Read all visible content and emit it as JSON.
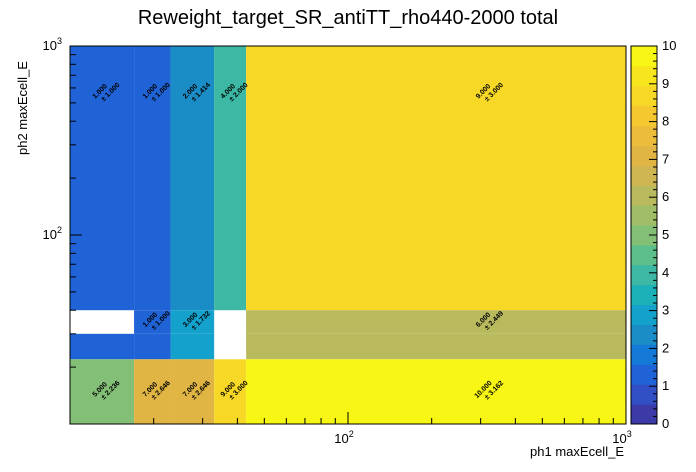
{
  "chart_data": {
    "type": "heatmap",
    "title": "Reweight_target_SR_antiTT_rho440-2000 total",
    "xlabel": "ph1 maxEcell_E",
    "ylabel": "ph2 maxEcell_E",
    "x_scale": "log",
    "y_scale": "log",
    "xlim": [
      10,
      1000
    ],
    "ylim": [
      10,
      1000
    ],
    "x_ticks": [
      {
        "value": 100,
        "mantissa": "10",
        "exponent": "2"
      },
      {
        "value": 1000,
        "mantissa": "10",
        "exponent": "3"
      }
    ],
    "y_ticks": [
      {
        "value": 100,
        "mantissa": "10",
        "exponent": "2"
      },
      {
        "value": 1000,
        "mantissa": "10",
        "exponent": "3"
      }
    ],
    "x_edges": [
      10,
      17,
      23,
      33,
      43,
      1000
    ],
    "y_edges": [
      10,
      22,
      30,
      40,
      1000
    ],
    "cells": [
      {
        "i": 0,
        "j": 3,
        "value": 1,
        "label": "1.000",
        "error": "± 1.000"
      },
      {
        "i": 1,
        "j": 3,
        "value": 1,
        "label": "1.000",
        "error": "± 1.000"
      },
      {
        "i": 2,
        "j": 3,
        "value": 2,
        "label": "2.000",
        "error": "± 1.414"
      },
      {
        "i": 3,
        "j": 3,
        "value": 4,
        "label": "4.000",
        "error": "± 2.000"
      },
      {
        "i": 4,
        "j": 3,
        "value": 9,
        "label": "9.000",
        "error": "± 3.000"
      },
      {
        "i": 1,
        "j": 2,
        "value": 1,
        "label": "1.000",
        "error": "± 1.000"
      },
      {
        "i": 2,
        "j": 2,
        "value": 3,
        "label": "3.000",
        "error": "± 1.732"
      },
      {
        "i": 4,
        "j": 2,
        "value": 6,
        "label": "6.000",
        "error": "± 2.449"
      },
      {
        "i": 0,
        "j": 1,
        "value": 1,
        "label": null,
        "error": null
      },
      {
        "i": 1,
        "j": 1,
        "value": 1,
        "label": null,
        "error": null
      },
      {
        "i": 2,
        "j": 1,
        "value": 3,
        "label": null,
        "error": null
      },
      {
        "i": 4,
        "j": 1,
        "value": 6,
        "label": null,
        "error": null
      },
      {
        "i": 0,
        "j": 0,
        "value": 5,
        "label": "5.000",
        "error": "± 2.236"
      },
      {
        "i": 1,
        "j": 0,
        "value": 7,
        "label": "7.000",
        "error": "± 2.646"
      },
      {
        "i": 2,
        "j": 0,
        "value": 7,
        "label": "7.000",
        "error": "± 2.646"
      },
      {
        "i": 3,
        "j": 0,
        "value": 9,
        "label": "9.000",
        "error": "± 3.000"
      },
      {
        "i": 4,
        "j": 0,
        "value": 10,
        "label": "10.000",
        "error": "± 3.162"
      }
    ],
    "colorbar": {
      "min": 0,
      "max": 10,
      "ticks": [
        "0",
        "1",
        "2",
        "3",
        "4",
        "5",
        "6",
        "7",
        "8",
        "9",
        "10"
      ]
    },
    "palette": [
      "#3b3aa6",
      "#3150c5",
      "#1f63d6",
      "#157ad7",
      "#1a8cc6",
      "#14a1cc",
      "#1cb0b8",
      "#3cb8a4",
      "#5cbe8a",
      "#84bf77",
      "#a0bd67",
      "#b9ba5e",
      "#cfb652",
      "#e0b544",
      "#ecbd3a",
      "#f4c82e",
      "#f7d826",
      "#f7e51e",
      "#f7f614"
    ],
    "grid": false,
    "legend": "none"
  }
}
